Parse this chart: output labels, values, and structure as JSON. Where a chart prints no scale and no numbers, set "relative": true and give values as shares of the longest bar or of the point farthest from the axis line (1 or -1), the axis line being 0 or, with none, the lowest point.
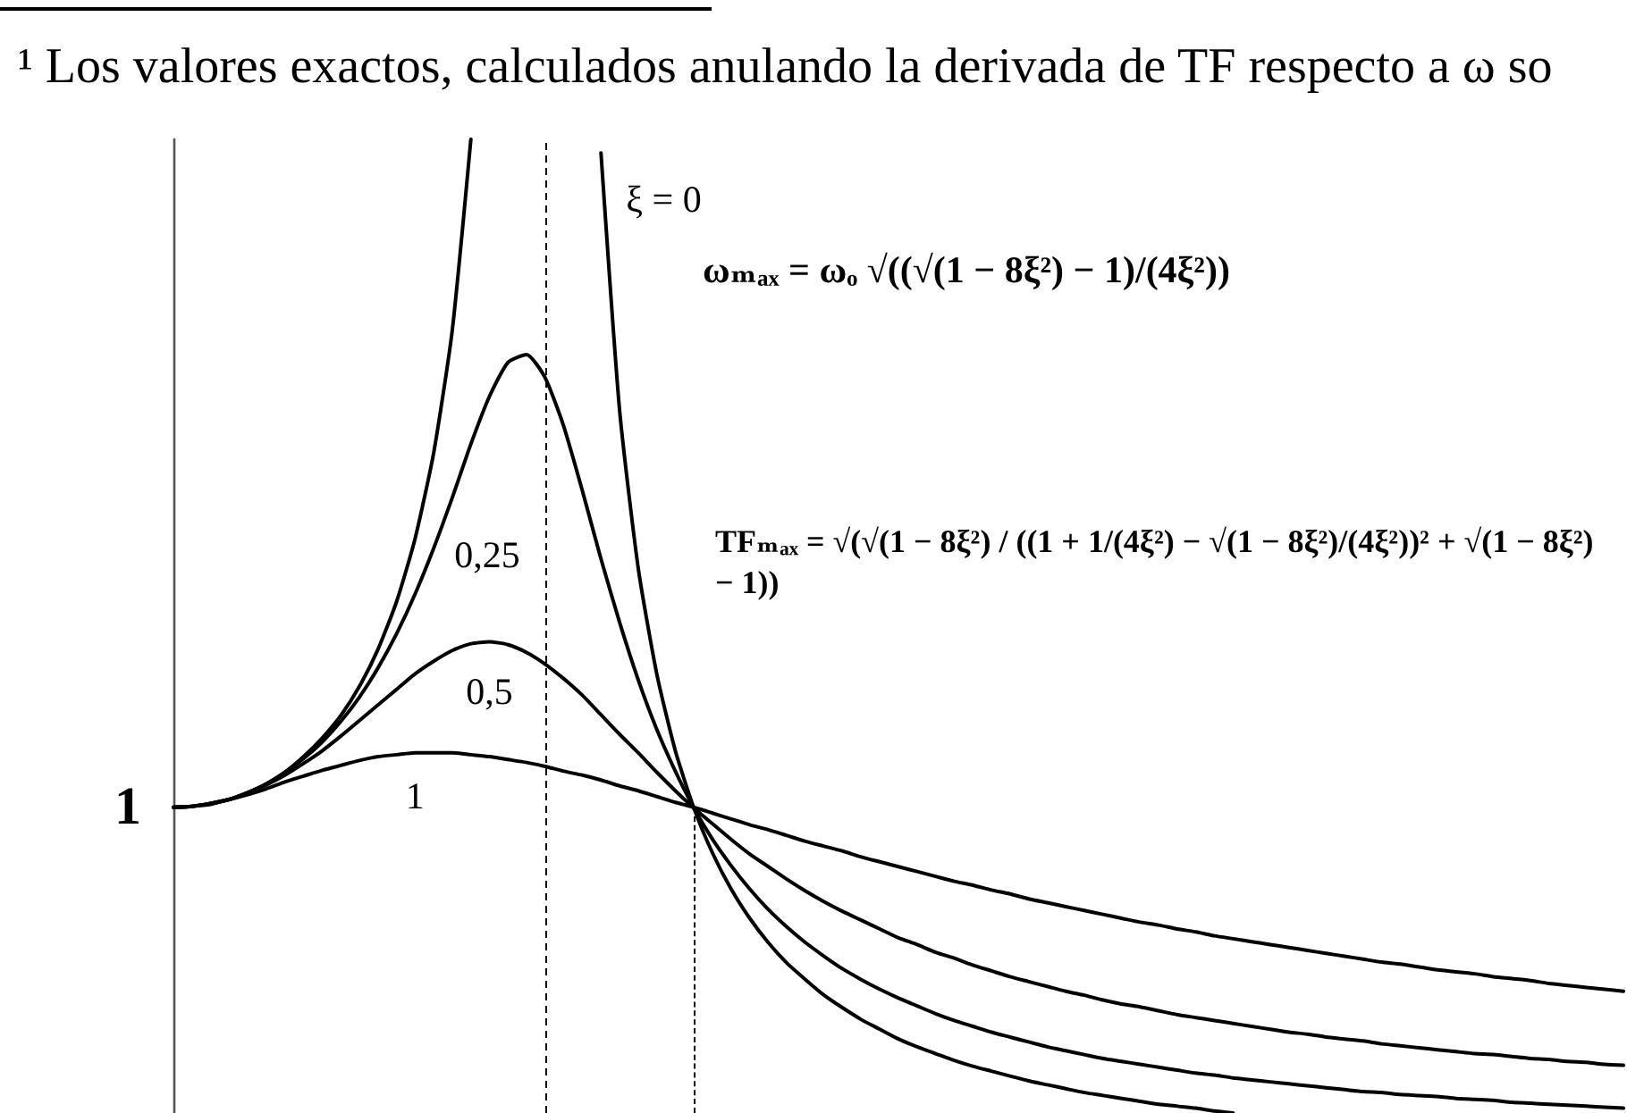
{
  "chart_data": {
    "type": "line",
    "relative": true,
    "marker": "none",
    "line_style": "solid",
    "categories": [
      null,
      null,
      null,
      null,
      null,
      null,
      null,
      null,
      null,
      null,
      null,
      null,
      null,
      null,
      null,
      null,
      null,
      null,
      null,
      null,
      null,
      null,
      null,
      null,
      null,
      null,
      null,
      null,
      null,
      null,
      null,
      null,
      null,
      null,
      null,
      null,
      null,
      null,
      null,
      null,
      null,
      null,
      null,
      null,
      null,
      null,
      null,
      null,
      null,
      null,
      null,
      null,
      null,
      null,
      null,
      null,
      null,
      null,
      null,
      null,
      null,
      null,
      null,
      null,
      null,
      null,
      null,
      null,
      null,
      null,
      null,
      null,
      null,
      null,
      null,
      null,
      null,
      null,
      null
    ],
    "series": [
      {
        "name": "ξ = 0",
        "color": "#000000",
        "values": [
          0.314,
          0.315,
          0.318,
          0.322,
          0.329,
          0.338,
          0.35,
          0.366,
          0.385,
          0.408,
          0.438,
          0.476,
          0.525,
          0.59,
          0.678,
          0.804,
          1,
          null,
          null,
          null,
          null,
          null,
          null,
          0.986,
          0.722,
          0.56,
          0.451,
          0.372,
          0.313,
          0.267,
          0.23,
          0.2,
          0.175,
          0.154,
          0.137,
          0.121,
          0.108,
          0.096,
          0.086,
          0.076,
          0.068,
          0.061,
          0.054,
          0.048,
          0.043,
          0.038,
          0.033,
          0.029,
          0.025,
          0.021,
          0.018,
          0.015,
          0.012,
          0.009,
          0.007,
          0.005,
          0.002,
          0,
          null,
          null,
          null,
          null,
          null,
          null,
          null,
          null,
          null,
          null,
          null,
          null,
          null,
          null,
          null,
          null,
          null,
          null,
          null,
          null,
          null
        ]
      },
      {
        "name": "0,25",
        "color": "#000000",
        "values": [
          0.314,
          0.315,
          0.318,
          0.322,
          0.329,
          0.338,
          0.35,
          0.364,
          0.381,
          0.402,
          0.427,
          0.457,
          0.492,
          0.533,
          0.58,
          0.632,
          0.687,
          0.736,
          0.771,
          0.779,
          0.755,
          0.705,
          0.639,
          0.569,
          0.504,
          0.445,
          0.394,
          0.351,
          0.313,
          0.281,
          0.254,
          0.23,
          0.209,
          0.191,
          0.175,
          0.161,
          0.148,
          0.137,
          0.127,
          0.118,
          0.11,
          0.102,
          0.095,
          0.089,
          0.083,
          0.078,
          0.073,
          0.068,
          0.064,
          0.06,
          0.056,
          0.053,
          0.05,
          0.047,
          0.044,
          0.041,
          0.039,
          0.036,
          0.034,
          0.032,
          0.03,
          0.028,
          0.026,
          0.024,
          0.022,
          0.021,
          0.019,
          0.018,
          0.017,
          0.015,
          0.014,
          0.013,
          0.011,
          0.01,
          0.009,
          0.008,
          0.007,
          0.006,
          0.005
        ]
      },
      {
        "name": "0,5",
        "color": "#000000",
        "values": [
          0.314,
          0.315,
          0.318,
          0.322,
          0.329,
          0.337,
          0.347,
          0.359,
          0.372,
          0.387,
          0.403,
          0.419,
          0.435,
          0.451,
          0.464,
          0.475,
          0.482,
          0.484,
          0.481,
          0.473,
          0.461,
          0.446,
          0.429,
          0.409,
          0.389,
          0.37,
          0.35,
          0.331,
          0.313,
          0.297,
          0.281,
          0.266,
          0.253,
          0.24,
          0.228,
          0.217,
          0.207,
          0.198,
          0.189,
          0.18,
          0.173,
          0.165,
          0.159,
          0.152,
          0.146,
          0.14,
          0.135,
          0.13,
          0.125,
          0.121,
          0.116,
          0.112,
          0.109,
          0.105,
          0.101,
          0.098,
          0.095,
          0.092,
          0.089,
          0.086,
          0.083,
          0.081,
          0.078,
          0.076,
          0.074,
          0.071,
          0.069,
          0.067,
          0.065,
          0.063,
          0.061,
          0.06,
          0.058,
          0.056,
          0.055,
          0.053,
          0.052,
          0.05,
          0.049
        ]
      },
      {
        "name": "1",
        "color": "#000000",
        "values": [
          0.314,
          0.315,
          0.317,
          0.322,
          0.327,
          0.333,
          0.34,
          0.346,
          0.352,
          0.357,
          0.362,
          0.366,
          0.368,
          0.37,
          0.37,
          0.37,
          0.368,
          0.366,
          0.363,
          0.36,
          0.356,
          0.351,
          0.347,
          0.342,
          0.336,
          0.331,
          0.325,
          0.319,
          0.314,
          0.308,
          0.302,
          0.296,
          0.291,
          0.285,
          0.279,
          0.274,
          0.269,
          0.263,
          0.258,
          0.253,
          0.248,
          0.243,
          0.238,
          0.234,
          0.229,
          0.225,
          0.22,
          0.216,
          0.212,
          0.208,
          0.204,
          0.2,
          0.196,
          0.193,
          0.189,
          0.186,
          0.182,
          0.179,
          0.176,
          0.173,
          0.17,
          0.167,
          0.164,
          0.161,
          0.158,
          0.155,
          0.153,
          0.15,
          0.147,
          0.145,
          0.143,
          0.14,
          0.138,
          0.136,
          0.133,
          0.131,
          0.129,
          0.127,
          0.125
        ]
      }
    ],
    "annotations": [
      "¹ Los valores exactos, calculados anulando la derivada de TF respecto a ω so",
      "1",
      "ωₘₐₓ = ωₒ √((√(1 − 8ξ²) − 1)/(4ξ²))",
      "TFₘₐₓ = √(√(1 − 8ξ²) / ((1 + 1/(4ξ²) − √(1 − 8ξ²)/(4ξ²))² + √(1 − 8ξ²) − 1))"
    ]
  }
}
